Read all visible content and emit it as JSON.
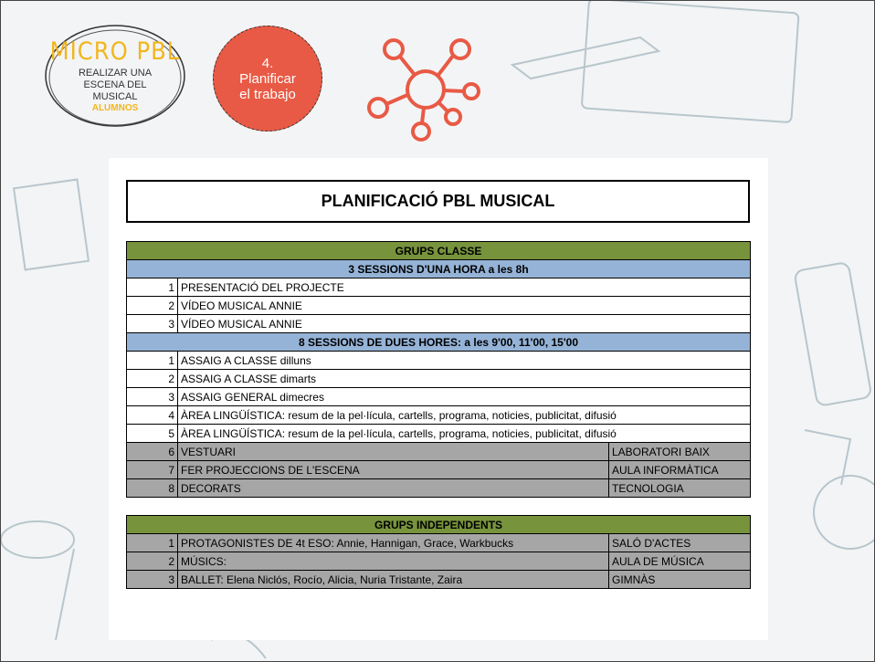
{
  "header": {
    "logo_title": "MICRO PBL",
    "logo_subtitle": "REALIZAR UNA ESCENA DEL MUSICAL",
    "logo_tag": "ALUMNOS",
    "step": "4. Planificar el trabajo"
  },
  "table": {
    "title": "PLANIFICACIÓ PBL MUSICAL",
    "groups": [
      {
        "heading": "GRUPS CLASSE",
        "blocks": [
          {
            "heading": "3 SESSIONS D'UNA HORA a les 8h",
            "rows": [
              [
                1,
                "PRESENTACIÓ DEL PROJECTE"
              ],
              [
                2,
                "VÍDEO MUSICAL ANNIE"
              ],
              [
                3,
                "VÍDEO MUSICAL ANNIE"
              ]
            ]
          },
          {
            "heading": "8 SESSIONS DE DUES HORES: a les 9'00, 11'00, 15'00",
            "rows": [
              [
                1,
                "ASSAIG A CLASSE dilluns"
              ],
              [
                2,
                "ASSAIG A CLASSE dimarts"
              ],
              [
                3,
                "ASSAIG GENERAL dimecres"
              ],
              [
                4,
                "ÀREA LINGÜÍSTICA: resum de la pel·lícula, cartells, programa, noticies, publicitat, difusió"
              ],
              [
                5,
                "ÀREA LINGÜÍSTICA: resum de la pel·lícula, cartells, programa, noticies, publicitat, difusió"
              ],
              [
                6,
                "VESTUARI",
                "LABORATORI BAIX"
              ],
              [
                7,
                "FER PROJECCIONS DE L'ESCENA",
                "AULA INFORMÀTICA"
              ],
              [
                8,
                "DECORATS",
                "TECNOLOGIA"
              ]
            ]
          }
        ]
      },
      {
        "heading": "GRUPS INDEPENDENTS",
        "blocks": [
          {
            "rows": [
              [
                1,
                "PROTAGONISTES DE 4t ESO: Annie, Hannigan, Grace, Warkbucks",
                "SALÓ D'ACTES"
              ],
              [
                2,
                "MÚSICS:",
                "AULA DE MÚSICA"
              ],
              [
                3,
                "BALLET: Elena Niclós, Rocío, Alicia, Nuria Tristante, Zaira",
                "GIMNÀS"
              ]
            ]
          }
        ]
      }
    ]
  }
}
